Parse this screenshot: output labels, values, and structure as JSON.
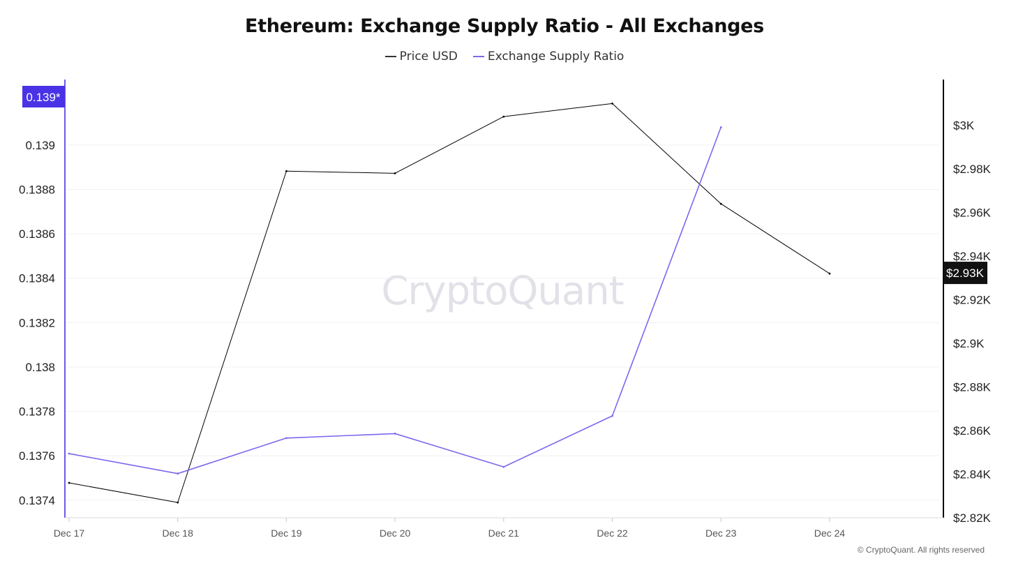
{
  "chart_data": {
    "type": "line",
    "title": "Ethereum: Exchange Supply Ratio - All Exchanges",
    "categories": [
      "Dec 17",
      "Dec 18",
      "Dec 19",
      "Dec 20",
      "Dec 21",
      "Dec 22",
      "Dec 23",
      "Dec 24"
    ],
    "series": [
      {
        "name": "Price USD",
        "axis": "right",
        "color": "#000000",
        "values": [
          2836,
          2827,
          2979,
          2978,
          3004,
          3010,
          2964,
          2932
        ]
      },
      {
        "name": "Exchange Supply Ratio",
        "axis": "left",
        "color": "#7b68ee",
        "values": [
          0.13761,
          0.13752,
          0.13768,
          0.1377,
          0.13755,
          0.13778,
          0.13908,
          null
        ]
      }
    ],
    "y_left": {
      "ticks": [
        "0.1374",
        "0.1376",
        "0.1378",
        "0.138",
        "0.1382",
        "0.1384",
        "0.1386",
        "0.1388",
        "0.139"
      ],
      "tick_values": [
        0.1374,
        0.1376,
        0.1378,
        0.138,
        0.1382,
        0.1384,
        0.1386,
        0.1388,
        0.139
      ],
      "range": [
        0.137321,
        0.139295
      ],
      "color": "#6b5ce7",
      "current_badge": "0.139*",
      "badge_color": "#4a32e6"
    },
    "y_right": {
      "ticks": [
        "$2.82K",
        "$2.84K",
        "$2.86K",
        "$2.88K",
        "$2.9K",
        "$2.92K",
        "$2.94K",
        "$2.96K",
        "$2.98K",
        "$3K"
      ],
      "tick_values": [
        2820,
        2840,
        2860,
        2880,
        2900,
        2920,
        2940,
        2960,
        2980,
        3000
      ],
      "range": [
        2820,
        3021
      ],
      "color": "#000000",
      "current_badge": "$2.93K",
      "badge_color": "#111111"
    },
    "grid": true,
    "legend": "top-center"
  },
  "watermark": "CryptoQuant",
  "copyright": "© CryptoQuant. All rights reserved"
}
